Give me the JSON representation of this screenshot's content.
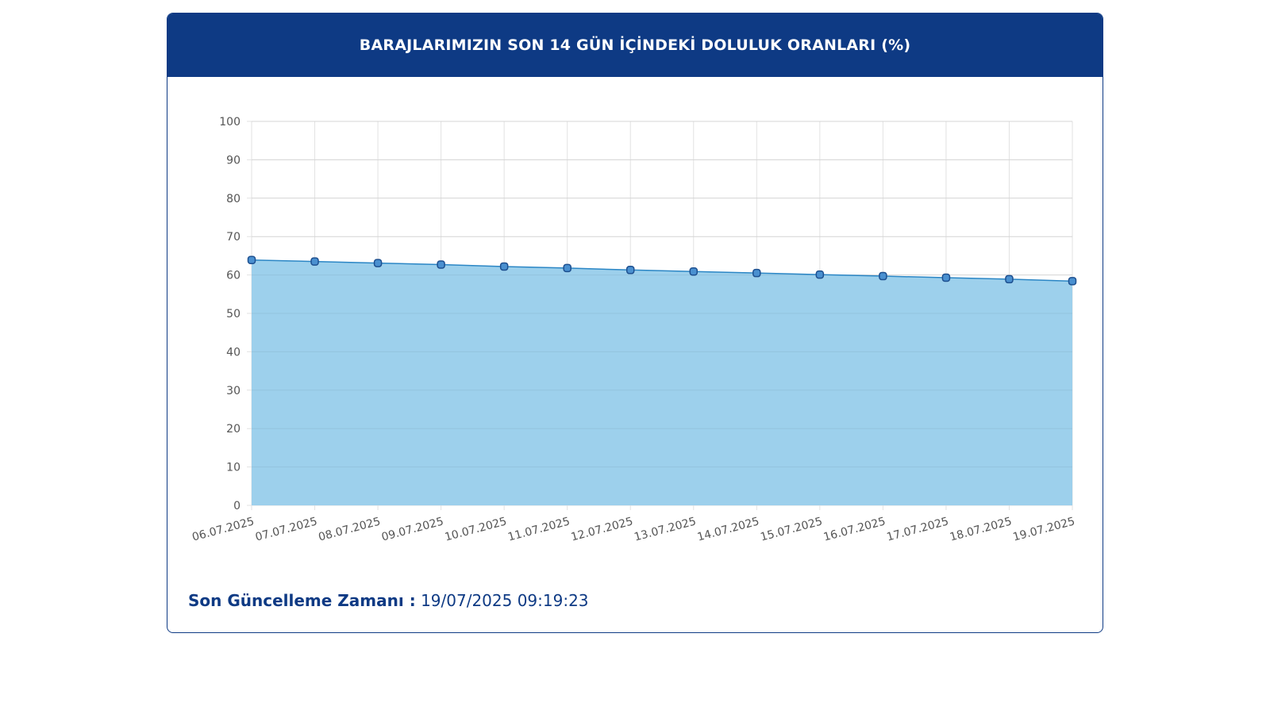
{
  "header": {
    "title": "BARAJLARIMIZIN SON 14 GÜN İÇİNDEKİ DOLULUK ORANLARI (%)"
  },
  "footer": {
    "label": "Son Güncelleme Zamanı :",
    "value": "19/07/2025 09:19:23"
  },
  "colors": {
    "header_bg": "#0e3a84",
    "area_fill": "#9dd0ec",
    "line": "#2b86c5",
    "point_fill": "#4a90d0",
    "point_stroke": "#1d4f8f"
  },
  "chart_data": {
    "type": "area",
    "title": "BARAJLARIMIZIN SON 14 GÜN İÇİNDEKİ DOLULUK ORANLARI (%)",
    "categories": [
      "06.07.2025",
      "07.07.2025",
      "08.07.2025",
      "09.07.2025",
      "10.07.2025",
      "11.07.2025",
      "12.07.2025",
      "13.07.2025",
      "14.07.2025",
      "15.07.2025",
      "16.07.2025",
      "17.07.2025",
      "18.07.2025",
      "19.07.2025"
    ],
    "series": [
      {
        "values": [
          63.9,
          63.5,
          63.1,
          62.7,
          62.2,
          61.8,
          61.3,
          60.9,
          60.5,
          60.1,
          59.7,
          59.3,
          58.9,
          58.4
        ]
      }
    ],
    "ylim": [
      0,
      100
    ],
    "yticks": [
      0,
      10,
      20,
      30,
      40,
      50,
      60,
      70,
      80,
      90,
      100
    ],
    "grid": true,
    "xlabel": "",
    "ylabel": ""
  }
}
